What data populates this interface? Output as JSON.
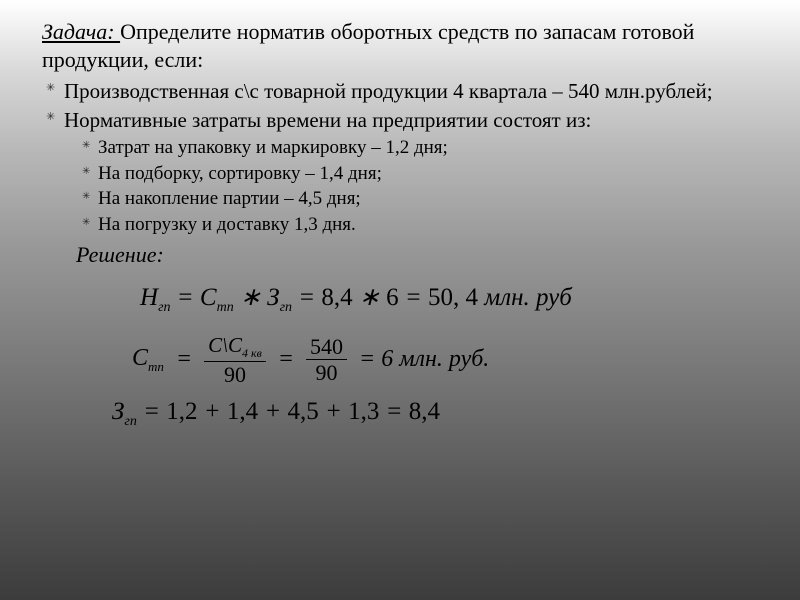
{
  "title_prefix": "Задача: ",
  "title_rest": "Определите норматив оборотных средств по запасам готовой продукции, если:",
  "bullets": [
    "Производственная с\\с товарной продукции 4 квартала – 540 млн.рублей;",
    "Нормативные затраты времени на предприятии состоят из:"
  ],
  "sub_bullets": [
    "Затрат на упаковку и маркировку – 1,2 дня;",
    "На подборку, сортировку – 1,4 дня;",
    "На накопление партии – 4,5 дня;",
    "На погрузку и доставку  1,3 дня."
  ],
  "solution_label": "Решение: ",
  "formula1": {
    "lhs_var": "Н",
    "lhs_sub": "гп",
    "rhs1_var": "С",
    "rhs1_sub": "тп",
    "op1": " ∗ ",
    "rhs2_var": "З",
    "rhs2_sub": "гп",
    "eq": " = ",
    "v1": "8,4",
    "op2": " ∗ ",
    "v2": "6 ",
    "eq2": " = ",
    "result": "50, 4 ",
    "unit": "млн. руб"
  },
  "formula2": {
    "lhs_var": "С",
    "lhs_sub": "тп",
    "eq": " = ",
    "frac1_top_a": "С\\С",
    "frac1_top_b": "4 кв",
    "frac1_bot": "90",
    "eq2": " = ",
    "frac2_top": "540",
    "frac2_bot": "90",
    "eq3": " = ",
    "result": "6 млн. руб."
  },
  "formula3": {
    "lhs_var": "З",
    "lhs_sub": "гп",
    "eq": " = ",
    "v1": "1,2",
    "p1": " + ",
    "v2": "1,4",
    "p2": " + ",
    "v3": "4,5",
    "p3": " + ",
    "v4": "1,3",
    "eq2": " = ",
    "result": "8,4"
  },
  "colors": {
    "text": "#000000",
    "bg_top": "#ffffff",
    "bg_bottom": "#3c3c3c"
  }
}
